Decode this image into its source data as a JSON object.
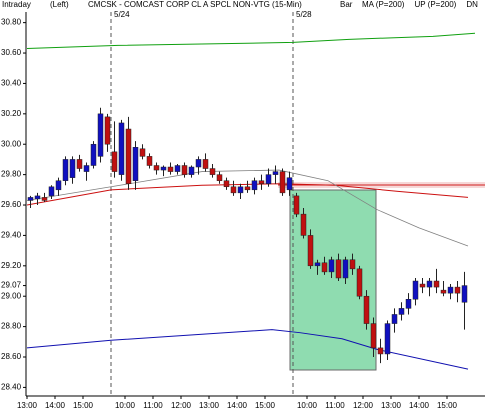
{
  "chart_data": {
    "type": "candlestick",
    "header": [
      "Intraday",
      "(Left)"
    ],
    "title": "CMCSK - COMCAST CORP CL A SPCL NON-VTG (15-Min)",
    "chart_label": "Bar",
    "up_color": "#1010c0",
    "down_color": "#c01010",
    "open": [
      29.63,
      29.64,
      29.65,
      29.66,
      29.7,
      29.76,
      29.78,
      29.9,
      29.82,
      29.86,
      29.92,
      30.18,
      29.95,
      29.8,
      30.1,
      29.76,
      29.97,
      29.92,
      29.86,
      29.83,
      29.85,
      29.82,
      29.86,
      29.8,
      29.85,
      29.9,
      29.84,
      29.8,
      29.76,
      29.72,
      29.68,
      29.72,
      29.7,
      29.76,
      29.74,
      29.8,
      29.82,
      29.7,
      29.66,
      29.54,
      29.4,
      29.2,
      29.22,
      29.16,
      29.24,
      29.12,
      29.24,
      29.18,
      29.0,
      28.82,
      28.66,
      28.62,
      28.82,
      28.88,
      28.92,
      28.98,
      29.08,
      29.06,
      29.1,
      29.04,
      29.02,
      29.06,
      28.96
    ],
    "high": [
      29.66,
      29.68,
      29.68,
      29.73,
      29.78,
      29.92,
      29.92,
      29.93,
      29.88,
      30.02,
      30.24,
      30.2,
      30.15,
      30.16,
      30.18,
      30.02,
      30.0,
      29.94,
      29.88,
      29.86,
      29.88,
      29.87,
      29.88,
      29.86,
      29.92,
      29.94,
      29.87,
      29.82,
      29.78,
      29.76,
      29.74,
      29.76,
      29.78,
      29.8,
      29.84,
      29.86,
      29.84,
      29.82,
      29.68,
      29.58,
      29.44,
      29.24,
      29.26,
      29.26,
      29.28,
      29.26,
      29.28,
      29.2,
      29.04,
      28.86,
      28.72,
      28.84,
      28.92,
      28.96,
      29.02,
      29.12,
      29.12,
      29.12,
      29.18,
      29.1,
      29.08,
      29.1,
      29.16
    ],
    "low": [
      29.58,
      29.6,
      29.62,
      29.64,
      29.66,
      29.73,
      29.74,
      29.82,
      29.76,
      29.84,
      29.88,
      29.95,
      29.78,
      29.76,
      29.7,
      29.7,
      29.9,
      29.84,
      29.8,
      29.79,
      29.8,
      29.8,
      29.78,
      29.78,
      29.8,
      29.82,
      29.78,
      29.74,
      29.7,
      29.66,
      29.64,
      29.68,
      29.67,
      29.7,
      29.72,
      29.74,
      29.66,
      29.66,
      29.52,
      29.38,
      29.18,
      29.14,
      29.14,
      29.12,
      29.1,
      29.08,
      29.14,
      28.98,
      28.78,
      28.6,
      28.56,
      28.58,
      28.76,
      28.84,
      28.88,
      28.94,
      29.02,
      29.0,
      29.02,
      29.0,
      28.98,
      28.96,
      28.78
    ],
    "close": [
      29.65,
      29.66,
      29.63,
      29.72,
      29.76,
      29.9,
      29.9,
      29.84,
      29.86,
      30.0,
      30.2,
      30.0,
      29.82,
      30.14,
      29.74,
      29.98,
      29.92,
      29.86,
      29.83,
      29.85,
      29.82,
      29.86,
      29.8,
      29.85,
      29.9,
      29.84,
      29.8,
      29.76,
      29.72,
      29.68,
      29.72,
      29.7,
      29.76,
      29.74,
      29.8,
      29.82,
      29.68,
      29.78,
      29.54,
      29.4,
      29.2,
      29.22,
      29.16,
      29.24,
      29.12,
      29.24,
      29.18,
      29.0,
      28.82,
      28.66,
      28.62,
      28.82,
      28.88,
      28.92,
      28.98,
      29.1,
      29.06,
      29.1,
      29.06,
      29.02,
      29.06,
      29.02,
      29.07
    ],
    "series": [
      {
        "name": "MA (P=200)",
        "color": "#cc1010",
        "x": [
          0,
          12,
          25,
          36,
          44,
          53,
          63
        ],
        "values": [
          29.6,
          29.7,
          29.73,
          29.74,
          29.73,
          29.69,
          29.65
        ]
      },
      {
        "name": "UP (P=200)",
        "color": "#10a010",
        "x": [
          0,
          13,
          26,
          38,
          46,
          52,
          58,
          64
        ],
        "values": [
          30.63,
          30.65,
          30.66,
          30.67,
          30.69,
          30.7,
          30.71,
          30.73
        ]
      },
      {
        "name": "DN",
        "color": "#1010b0",
        "x": [
          0,
          12,
          25,
          35,
          39,
          45,
          50,
          63
        ],
        "values": [
          28.66,
          28.71,
          28.75,
          28.78,
          28.76,
          28.72,
          28.65,
          28.52
        ]
      },
      {
        "color": "#808080",
        "x": [
          0,
          12,
          25,
          36,
          43,
          50,
          56,
          63
        ],
        "values": [
          29.63,
          29.72,
          29.82,
          29.83,
          29.76,
          29.57,
          29.45,
          29.33
        ]
      }
    ],
    "sessions": [
      {
        "x": 12,
        "label": "5/24"
      },
      {
        "x": 38,
        "label": "5/28"
      }
    ],
    "xlim": [
      0,
      65
    ],
    "xticks": [
      {
        "value": 0,
        "label": "13:00"
      },
      {
        "value": 4,
        "label": "14:00"
      },
      {
        "value": 8,
        "label": "15:00"
      },
      {
        "value": 14,
        "label": "10:00"
      },
      {
        "value": 18,
        "label": "11:00"
      },
      {
        "value": 22,
        "label": "12:00"
      },
      {
        "value": 26,
        "label": "13:00"
      },
      {
        "value": 30,
        "label": "14:00"
      },
      {
        "value": 34,
        "label": "15:00"
      },
      {
        "value": 40,
        "label": "10:00"
      },
      {
        "value": 44,
        "label": "11:00"
      },
      {
        "value": 48,
        "label": "12:00"
      },
      {
        "value": 52,
        "label": "13:00"
      },
      {
        "value": 56,
        "label": "14:00"
      },
      {
        "value": 60,
        "label": "15:00"
      }
    ],
    "ylim": [
      28.35,
      30.87
    ],
    "yticks": [
      {
        "value": 28.4,
        "label": "28.40"
      },
      {
        "value": 28.6,
        "label": "28.60"
      },
      {
        "value": 28.8,
        "label": "28.80"
      },
      {
        "value": 29.0,
        "label": "29.00"
      },
      29.07,
      {
        "value": 29.2,
        "label": "29.20"
      },
      {
        "value": 29.4,
        "label": "29.40"
      },
      {
        "value": 29.6,
        "label": "29.60"
      },
      {
        "value": 29.8,
        "label": "29.80"
      },
      {
        "value": 30.0,
        "label": "30.00"
      },
      {
        "value": 30.2,
        "label": "30.20"
      },
      {
        "value": 30.4,
        "label": "30.40"
      },
      {
        "value": 30.6,
        "label": "30.60"
      },
      {
        "value": 30.8,
        "label": "30.80"
      }
    ]
  }
}
